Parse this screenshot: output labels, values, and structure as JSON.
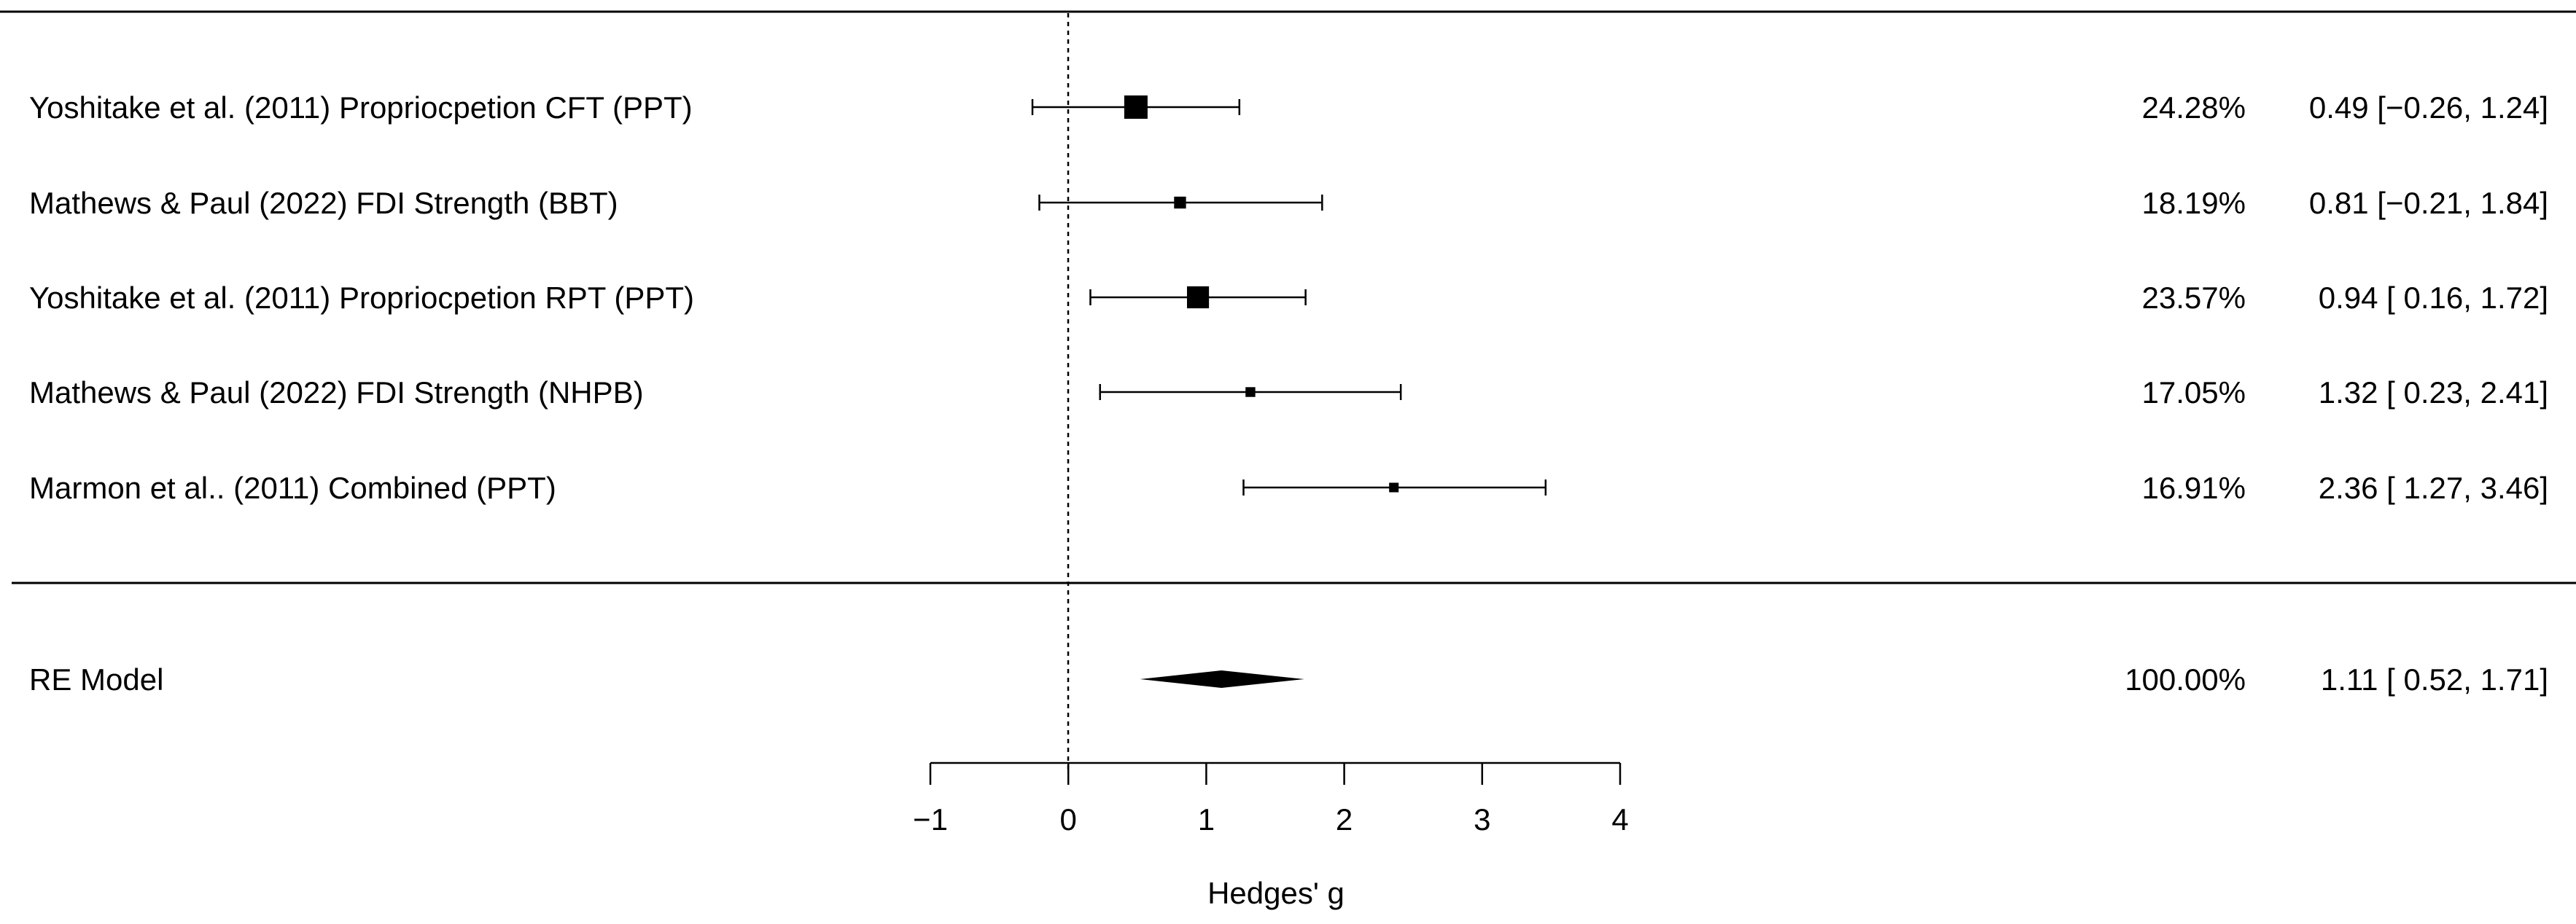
{
  "chart_data": {
    "type": "forest",
    "xlabel": "Hedges' g",
    "xlim": [
      -1,
      4
    ],
    "xticks": [
      -1,
      0,
      1,
      2,
      3,
      4
    ],
    "xtick_labels": [
      "−1",
      "0",
      "1",
      "2",
      "3",
      "4"
    ],
    "reference_line": 0,
    "studies": [
      {
        "label": "Yoshitake et al. (2011) Propriocpetion CFT (PPT)",
        "estimate": 0.49,
        "ci_low": -0.26,
        "ci_high": 1.24,
        "weight": 24.28,
        "weight_label": "24.28%",
        "ci_label": "0.49 [−0.26, 1.24]"
      },
      {
        "label": "Mathews & Paul (2022) FDI Strength (BBT)",
        "estimate": 0.81,
        "ci_low": -0.21,
        "ci_high": 1.84,
        "weight": 18.19,
        "weight_label": "18.19%",
        "ci_label": "0.81 [−0.21, 1.84]"
      },
      {
        "label": "Yoshitake et al. (2011) Propriocpetion RPT (PPT)",
        "estimate": 0.94,
        "ci_low": 0.16,
        "ci_high": 1.72,
        "weight": 23.57,
        "weight_label": "23.57%",
        "ci_label": "0.94 [ 0.16, 1.72]"
      },
      {
        "label": "Mathews & Paul (2022) FDI Strength (NHPB)",
        "estimate": 1.32,
        "ci_low": 0.23,
        "ci_high": 2.41,
        "weight": 17.05,
        "weight_label": "17.05%",
        "ci_label": "1.32 [ 0.23, 2.41]"
      },
      {
        "label": "Marmon et al.. (2011) Combined (PPT)",
        "estimate": 2.36,
        "ci_low": 1.27,
        "ci_high": 3.46,
        "weight": 16.91,
        "weight_label": "16.91%",
        "ci_label": "2.36 [ 1.27, 3.46]"
      }
    ],
    "summary": {
      "label": "RE Model",
      "estimate": 1.11,
      "ci_low": 0.52,
      "ci_high": 1.71,
      "weight_label": "100.00%",
      "ci_label": "1.11 [ 0.52, 1.71]"
    }
  }
}
